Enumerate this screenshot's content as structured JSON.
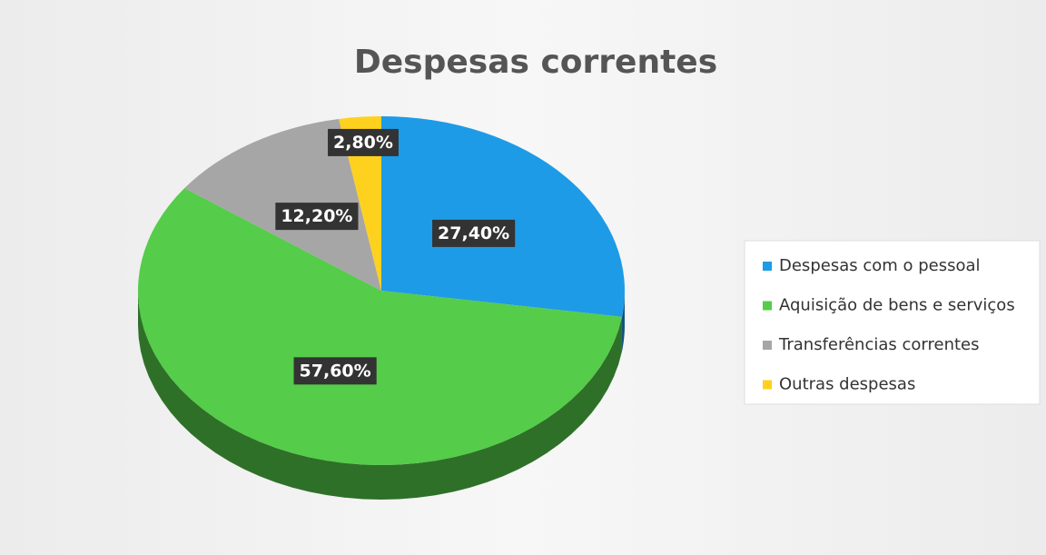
{
  "chart_data": {
    "type": "pie",
    "title": "Despesas correntes",
    "categories": [
      "Despesas com o pessoal",
      "Aquisição de bens e serviços",
      "Transferências correntes",
      "Outras despesas"
    ],
    "values": [
      27.4,
      57.6,
      12.2,
      2.8
    ],
    "value_labels": [
      "27,40%",
      "57,60%",
      "12,20%",
      "2,80%"
    ],
    "colors": [
      "#1e9be6",
      "#55cc4a",
      "#a6a6a6",
      "#ffd11f"
    ],
    "legend": "right"
  }
}
